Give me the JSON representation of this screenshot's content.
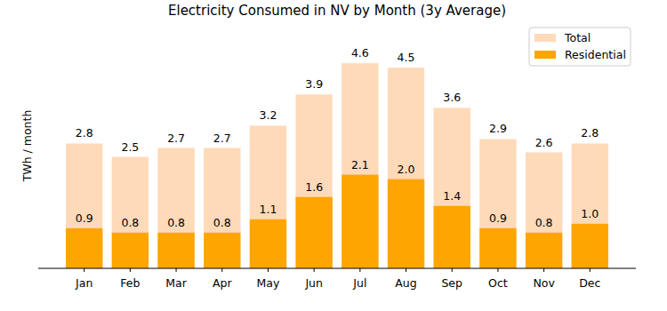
{
  "chart_data": {
    "type": "bar",
    "title": "Electricity Consumed in NV by Month (3y Average)",
    "ylabel": "TWh / month",
    "categories": [
      "Jan",
      "Feb",
      "Mar",
      "Apr",
      "May",
      "Jun",
      "Jul",
      "Aug",
      "Sep",
      "Oct",
      "Nov",
      "Dec"
    ],
    "series": [
      {
        "name": "Total",
        "color": "#ffdab9",
        "values": [
          2.8,
          2.5,
          2.7,
          2.7,
          3.2,
          3.9,
          4.6,
          4.5,
          3.6,
          2.9,
          2.6,
          2.8
        ]
      },
      {
        "name": "Residential",
        "color": "#ffa500",
        "values": [
          0.9,
          0.8,
          0.8,
          0.8,
          1.1,
          1.6,
          2.1,
          2.0,
          1.4,
          0.9,
          0.8,
          1.0
        ],
        "value_labels": [
          "0.9",
          "0.8",
          "0.8",
          "0.8",
          "1.1",
          "1.6",
          "2.1",
          "2.0",
          "1.4",
          "0.9",
          "0.8",
          "1.0"
        ]
      }
    ],
    "ylim": [
      0,
      5.5
    ],
    "stacked": false,
    "data_labels": true,
    "tick_labels": "x",
    "legend": "upper right",
    "grid": false
  }
}
